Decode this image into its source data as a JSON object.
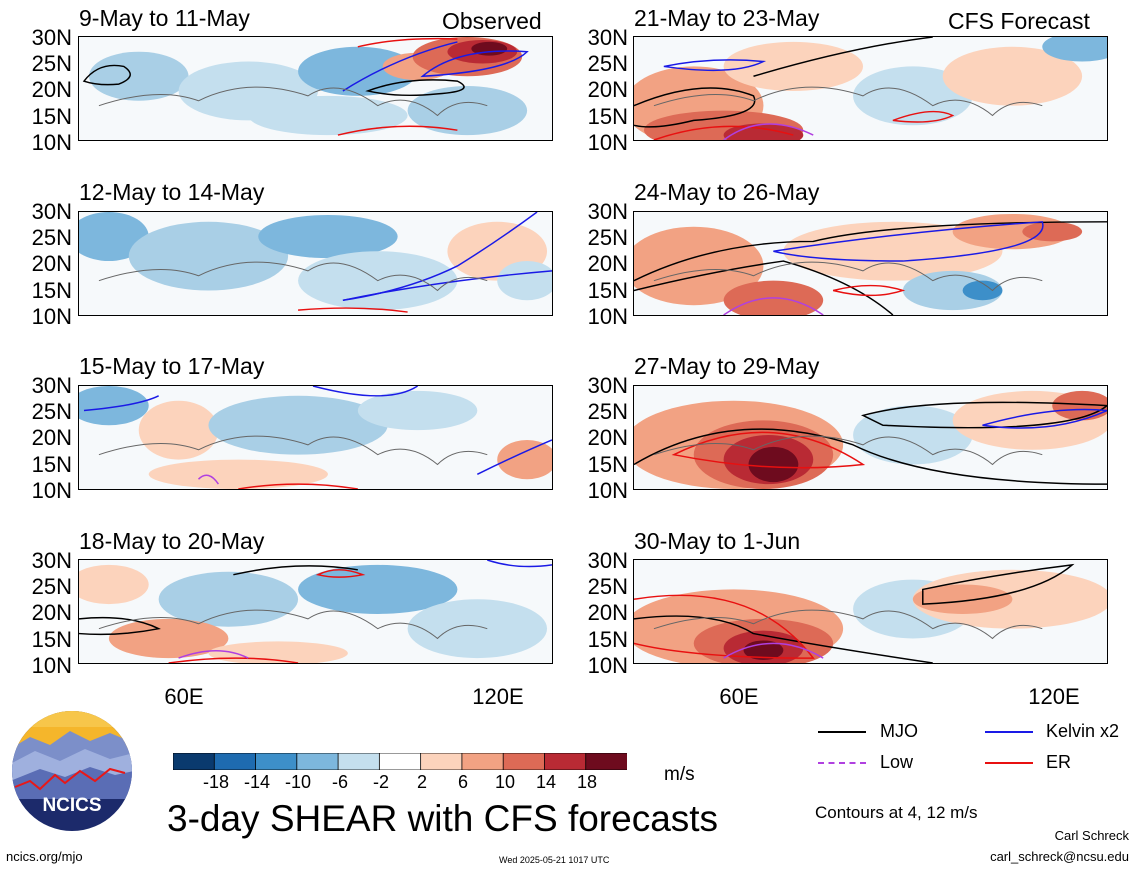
{
  "observed_label": "Observed",
  "forecast_label": "CFS Forecast",
  "lat_labels": [
    "30N",
    "25N",
    "20N",
    "15N",
    "10N"
  ],
  "lon_labels": [
    "60E",
    "120E"
  ],
  "panels_left": [
    {
      "title": "9-May to 11-May"
    },
    {
      "title": "12-May to 14-May"
    },
    {
      "title": "15-May to 17-May"
    },
    {
      "title": "18-May to 20-May"
    }
  ],
  "panels_right": [
    {
      "title": "21-May to 23-May"
    },
    {
      "title": "24-May to 26-May"
    },
    {
      "title": "27-May to 29-May"
    },
    {
      "title": "30-May to 1-Jun"
    }
  ],
  "colorbar": {
    "labels": [
      "-18",
      "-14",
      "-10",
      "-6",
      "-2",
      "2",
      "6",
      "10",
      "14",
      "18"
    ],
    "colors": [
      "#0a3a6e",
      "#1e6bb0",
      "#3d8fc9",
      "#7db7dd",
      "#c4dfee",
      "#ffffff",
      "#fcd3bc",
      "#f2a283",
      "#dd6a56",
      "#b92a34",
      "#6e0b1e"
    ],
    "unit": "m/s"
  },
  "legend": {
    "mjo": "MJO",
    "kelvin": "Kelvin x2",
    "low": "Low",
    "er": "ER",
    "colors": {
      "mjo": "#000000",
      "kelvin": "#1a1ae6",
      "low": "#b040e0",
      "er": "#e81010"
    }
  },
  "main_title": "3-day SHEAR with CFS forecasts",
  "contours_note": "Contours at 4, 12 m/s",
  "author": "Carl Schreck",
  "email": "carl_schreck@ncsu.edu",
  "website": "ncics.org/mjo",
  "timestamp": "Wed 2025-05-21 1017 UTC",
  "logo_text": "NCICS"
}
